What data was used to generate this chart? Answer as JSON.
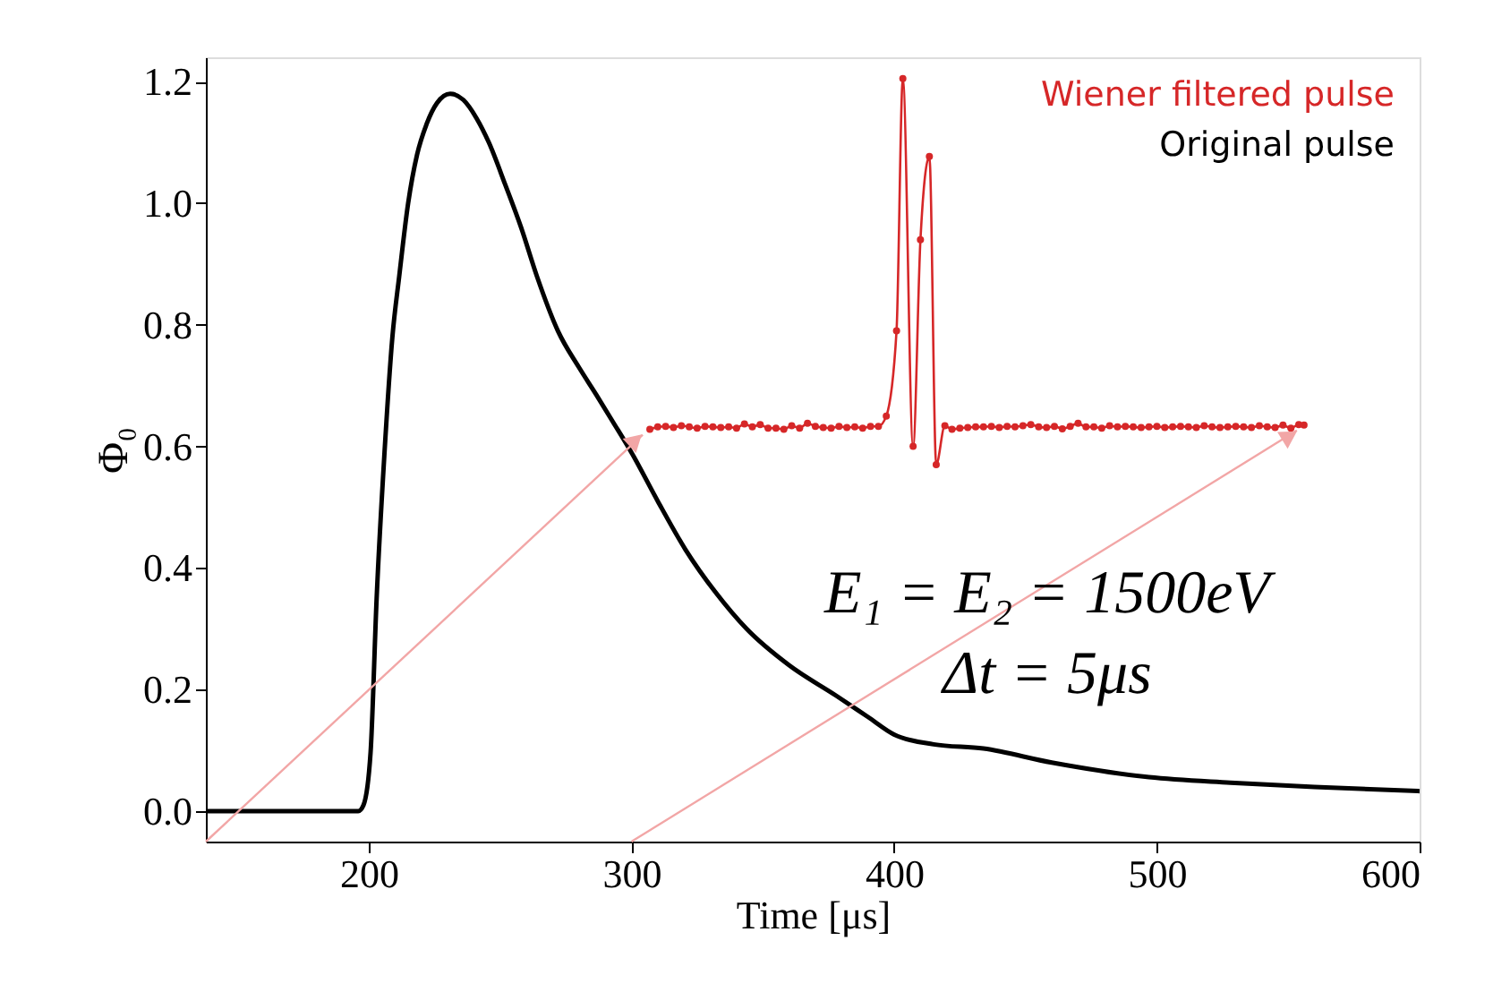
{
  "chart_data": {
    "type": "line",
    "xlabel": "Time [μs]",
    "ylabel": "Φ₀",
    "xlim": [
      138,
      600
    ],
    "ylim": [
      -0.05,
      1.24
    ],
    "xticks": [
      200,
      300,
      400,
      500,
      600
    ],
    "yticks": [
      {
        "value": 0,
        "label": "0.0"
      },
      {
        "value": 0.2,
        "label": "0.2"
      },
      {
        "value": 0.4,
        "label": "0.4"
      },
      {
        "value": 0.6,
        "label": "0.6"
      },
      {
        "value": 0.8,
        "label": "0.8"
      },
      {
        "value": 1.0,
        "label": "1.0"
      },
      {
        "value": 1.2,
        "label": "1.2"
      }
    ],
    "grid": false,
    "legend": "top right",
    "line_style": "solid",
    "series": [
      {
        "name": "Wiener filtered pulse",
        "color": "#d62728",
        "marker": "circle",
        "x": [
          307,
          310,
          313,
          316,
          319,
          322,
          325,
          328,
          331,
          334,
          337,
          340,
          343,
          346,
          349,
          352,
          355,
          358,
          361,
          364,
          367,
          370,
          373,
          376,
          379,
          382,
          385,
          388,
          391,
          394,
          397,
          400.9,
          403.3,
          407.2,
          410,
          413.4,
          416,
          419.3,
          422,
          425,
          428,
          431,
          434,
          437,
          440,
          443,
          446,
          449,
          452,
          455,
          458,
          461,
          464,
          467,
          470,
          473,
          476,
          479,
          482,
          485,
          488,
          491,
          494,
          497,
          500,
          503,
          506,
          509,
          512,
          515,
          518,
          521,
          524,
          527,
          530,
          533,
          536,
          539,
          542,
          545,
          548,
          551,
          554,
          556
        ],
        "values": [
          0.628,
          0.632,
          0.633,
          0.631,
          0.634,
          0.632,
          0.63,
          0.633,
          0.632,
          0.631,
          0.632,
          0.63,
          0.637,
          0.632,
          0.636,
          0.63,
          0.63,
          0.628,
          0.634,
          0.63,
          0.638,
          0.633,
          0.631,
          0.63,
          0.633,
          0.631,
          0.632,
          0.63,
          0.633,
          0.633,
          0.65,
          0.79,
          1.205,
          0.6,
          0.94,
          1.077,
          0.57,
          0.634,
          0.628,
          0.63,
          0.631,
          0.632,
          0.632,
          0.633,
          0.631,
          0.633,
          0.632,
          0.634,
          0.636,
          0.632,
          0.631,
          0.633,
          0.629,
          0.633,
          0.638,
          0.632,
          0.632,
          0.63,
          0.634,
          0.632,
          0.633,
          0.632,
          0.631,
          0.632,
          0.633,
          0.631,
          0.632,
          0.633,
          0.632,
          0.631,
          0.634,
          0.632,
          0.631,
          0.632,
          0.633,
          0.632,
          0.631,
          0.634,
          0.632,
          0.631,
          0.635,
          0.63,
          0.636,
          0.635
        ]
      },
      {
        "name": "Original pulse",
        "color": "#000000",
        "marker": "none",
        "x": [
          138,
          160,
          180,
          196,
          198,
          200.7,
          203,
          206,
          209,
          211.6,
          215,
          218.4,
          222,
          226,
          231,
          236,
          241,
          245.7,
          252,
          258,
          264,
          272,
          280,
          286.6,
          293,
          300,
          310,
          320.6,
          332,
          343.8,
          360,
          377.9,
          390,
          400,
          415,
          434,
          460,
          497,
          528,
          560,
          600
        ],
        "values": [
          0.0,
          0.0,
          0.0,
          0.0,
          0.01,
          0.097,
          0.35,
          0.59,
          0.78,
          0.88,
          1.0,
          1.08,
          1.13,
          1.165,
          1.18,
          1.17,
          1.14,
          1.1,
          1.03,
          0.96,
          0.88,
          0.79,
          0.73,
          0.685,
          0.64,
          0.59,
          0.51,
          0.43,
          0.36,
          0.3,
          0.24,
          0.19,
          0.155,
          0.126,
          0.11,
          0.103,
          0.08,
          0.056,
          0.047,
          0.04,
          0.033
        ]
      }
    ],
    "annotations": [
      "E₁ = E₂ = 1500eV",
      "Δt = 5μs"
    ]
  }
}
